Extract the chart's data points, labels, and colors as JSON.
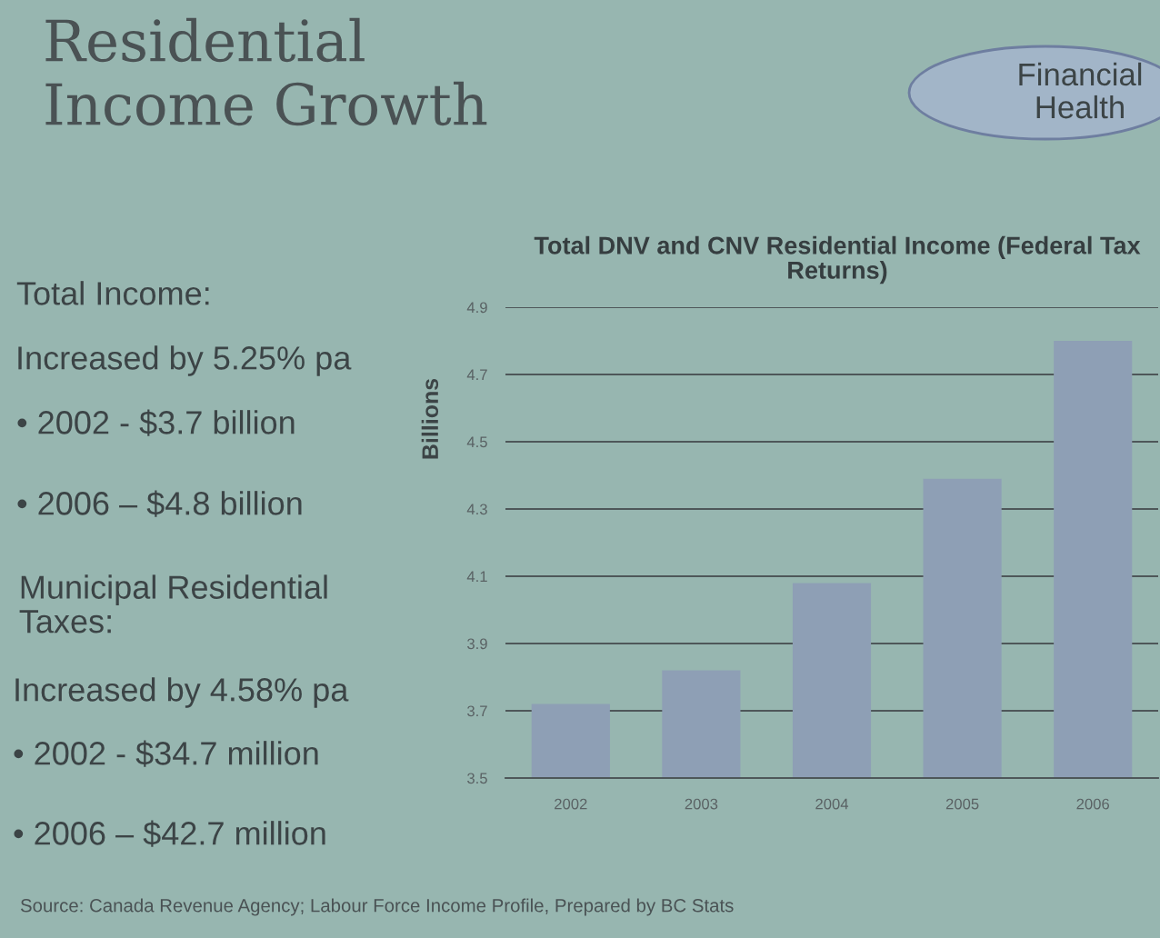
{
  "chart_data": {
    "type": "bar",
    "title": "Residential Income Growth",
    "subtitle": "Total DNV and CNV Residential Income (Federal Tax Returns)",
    "ylabel": "Billions",
    "categories": [
      "2002",
      "2003",
      "2004",
      "2005",
      "2006"
    ],
    "values": [
      3.72,
      3.82,
      4.08,
      4.39,
      4.8
    ],
    "color": "#8e9fb5",
    "ylim": [
      3.5,
      4.9
    ],
    "yticks": [
      3.5,
      3.7,
      3.9,
      4.1,
      4.3,
      4.5,
      4.7,
      4.9
    ],
    "grid": "y",
    "annotations": [
      "Financial Health",
      "Total Income:",
      "Increased by 5.25% pa",
      "• 2002 - $3.7 billion",
      "• 2006 – $4.8 billion",
      "Municipal Residential Taxes:",
      "Increased by 4.58% pa",
      "• 2002 - $34.7 million",
      "• 2006 – $42.7 million",
      "Source: Canada Revenue Agency; Labour Force Income Profile, Prepared by BC Stats"
    ]
  }
}
